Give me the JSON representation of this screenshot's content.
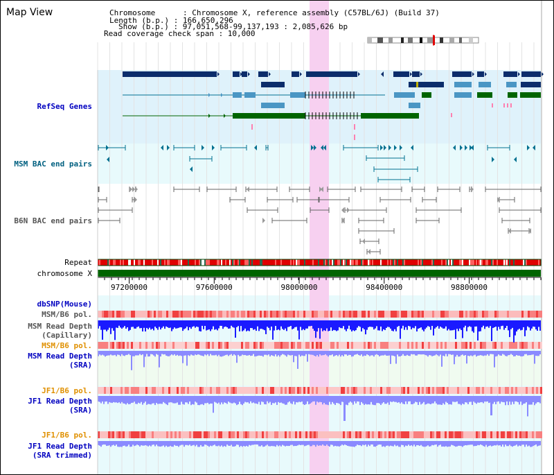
{
  "view": {
    "title": "Map View",
    "chromosome_label": "Chromosome      : Chromosome X, reference assembly (C57BL/6J) (Build 37)",
    "length_label": "Length (b.p.) : 166,650,296",
    "show_label": "Show (b.p.) : 97,051,568-99,137,193 : 2,085,626 bp",
    "coverage_label": "Read coverage check span : 10,000"
  },
  "tracks": {
    "refseq": "RefSeq Genes",
    "msm_bac": "MSM BAC end pairs",
    "b6n_bac": "B6N BAC end pairs",
    "repeat": "Repeat",
    "chromosome": "chromosome X",
    "dbsnp": "dbSNP(Mouse)",
    "msm_b6_pol_1": "MSM/B6 pol.",
    "msm_read_depth_cap": "MSM Read Depth\n(Capillary)",
    "msm_b6_pol_2": "MSM/B6 pol.",
    "msm_read_depth_sra": "MSM Read Depth\n(SRA)",
    "jf1_b6_pol_1": "JF1/B6 pol.",
    "jf1_read_depth_sra": "JF1 Read Depth\n(SRA)",
    "jf1_b6_pol_2": "JF1/B6 pol.",
    "jf1_read_depth_trimmed": "JF1 Read Depth\n(SRA trimmed)"
  },
  "ruler": {
    "ticks": [
      "97200000",
      "97600000",
      "98000000",
      "98400000",
      "98800000"
    ],
    "tick_values": [
      97200000,
      97600000,
      98000000,
      98400000,
      98800000
    ],
    "range": [
      97051568,
      99137193
    ]
  },
  "colors": {
    "refseq_bg": "#dff2fb",
    "bac_bg": "#e8fafc",
    "highlight": "#f7d0f0",
    "dark_gene": "#0c2d6b",
    "mid_gene": "#4a96c4",
    "green_gene": "#006400",
    "teal": "#007090",
    "red_pol": "#f06060",
    "read_blue": "#1a1aff",
    "read_light": "#8a8aff",
    "chrom_green": "#006400"
  }
}
